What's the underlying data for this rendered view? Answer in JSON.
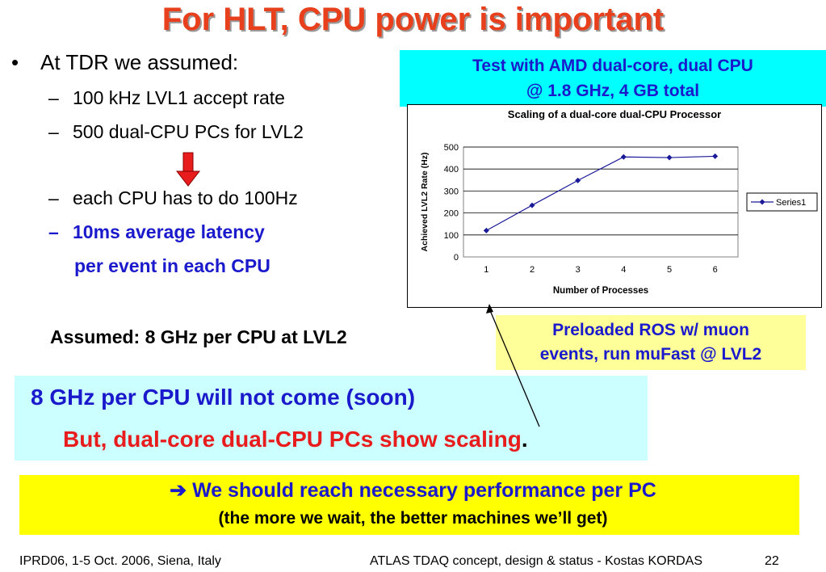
{
  "slide": {
    "title": "For HLT, CPU power is important",
    "bullet_main": "At TDR we assumed:",
    "sub1": "100 kHz LVL1 accept rate",
    "sub2": "500 dual-CPU PCs for LVL2",
    "sub3": "each CPU has to do 100Hz",
    "sub4": "10ms average latency",
    "sub4_cont": "per event in each CPU",
    "bullet_char": "•",
    "dash_char": "–",
    "assumed": "Assumed: 8 GHz per CPU at LVL2",
    "test_box_line1": "Test with AMD dual-core, dual CPU",
    "test_box_line2": "@ 1.8 GHz, 4 GB total",
    "preload_line1": "Preloaded ROS w/ muon",
    "preload_line2": "events, run muFast @ LVL2",
    "cyan_line1": "8 GHz per CPU will not come (soon)",
    "cyan_line2": "But, dual-core dual-CPU PCs show scaling",
    "cyan_line2_end": ".",
    "arrow_glyph": "➔",
    "yellow_line1": "We should reach necessary performance per PC",
    "yellow_line2": "(the more we wait, the better machines we’ll get)",
    "footer_left": "IPRD06, 1-5 Oct. 2006, Siena, Italy",
    "footer_mid": "ATLAS TDAQ concept, design & status - Kostas KORDAS",
    "footer_page": "22"
  },
  "colors": {
    "title": "#e8401c",
    "blue_text": "#1a1acc",
    "red_text": "#e81c1c",
    "series": "#1a1a99",
    "down_arrow": "#e81c1c"
  },
  "chart_data": {
    "type": "line",
    "title": "Scaling of a dual-core dual-CPU Processor",
    "xlabel": "Number of Processes",
    "ylabel": "Achieved LVL2 Rate (Hz)",
    "x": [
      1,
      2,
      3,
      4,
      5,
      6
    ],
    "ylim": [
      0,
      500
    ],
    "yticks": [
      0,
      100,
      200,
      300,
      400,
      500
    ],
    "grid": true,
    "legend": "right",
    "series": [
      {
        "name": "Series1",
        "values": [
          120,
          235,
          348,
          455,
          452,
          458
        ]
      }
    ]
  }
}
